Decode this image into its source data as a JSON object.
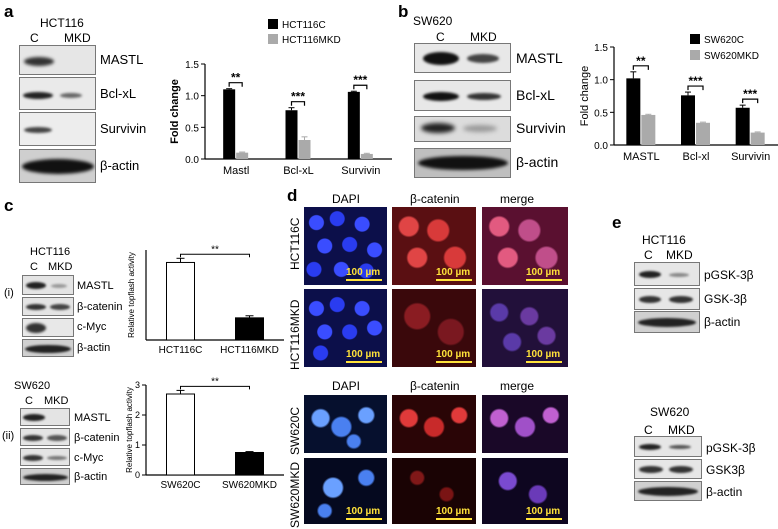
{
  "panels": {
    "a": {
      "letter": "a",
      "cell_line": "HCT116",
      "lanes": [
        "C",
        "MKD"
      ],
      "blot_labels": [
        "MASTL",
        "Bcl-xL",
        "Survivin",
        "β-actin"
      ]
    },
    "b": {
      "letter": "b",
      "cell_line": "SW620",
      "lanes": [
        "C",
        "MKD"
      ],
      "blot_labels": [
        "MASTL",
        "Bcl-xL",
        "Survivin",
        "β-actin"
      ]
    },
    "c": {
      "letter": "c",
      "i": {
        "roman": "(i)",
        "cell_line": "HCT116",
        "lanes": [
          "C",
          "MKD"
        ],
        "blot_labels": [
          "MASTL",
          "β-catenin",
          "c-Myc",
          "β-actin"
        ]
      },
      "ii": {
        "roman": "(ii)",
        "cell_line": "SW620",
        "lanes": [
          "C",
          "MKD"
        ],
        "blot_labels": [
          "MASTL",
          "β-catenin",
          "c-Myc",
          "β-actin"
        ]
      }
    },
    "d": {
      "letter": "d",
      "top_headers": [
        "DAPI",
        "β-catenin",
        "merge"
      ],
      "bottom_headers": [
        "DAPI",
        "β-catenin",
        "merge"
      ],
      "row_labels": [
        "HCT116C",
        "HCT116MKD",
        "SW620C",
        "SW620MKD"
      ],
      "scale_label": "100 µm"
    },
    "e": {
      "letter": "e",
      "top": {
        "cell_line": "HCT116",
        "lanes": [
          "C",
          "MKD"
        ],
        "blot_labels": [
          "pGSK-3β",
          "GSK-3β",
          "β-actin"
        ]
      },
      "bottom": {
        "cell_line": "SW620",
        "lanes": [
          "C",
          "MKD"
        ],
        "blot_labels": [
          "pGSK-3β",
          "GSK3β",
          "β-actin"
        ]
      }
    }
  },
  "chart_data": [
    {
      "id": "a",
      "type": "bar",
      "categories": [
        "Mastl",
        "Bcl-xL",
        "Survivin"
      ],
      "series": [
        {
          "name": "HCT116C",
          "color": "#000000",
          "values": [
            1.1,
            0.77,
            1.06
          ],
          "errors": [
            0.01,
            0.04,
            0.01
          ]
        },
        {
          "name": "HCT116MKD",
          "color": "#aaaaaa",
          "values": [
            0.1,
            0.3,
            0.08
          ],
          "errors": [
            0.01,
            0.05,
            0.01
          ]
        }
      ],
      "ylabel": "Fold change",
      "ylim": [
        0,
        1.5
      ],
      "yticks": [
        "0.0",
        "0.5",
        "1.0",
        "1.5"
      ],
      "significance": [
        "**",
        "***",
        "***"
      ],
      "legend": "top-right"
    },
    {
      "id": "b",
      "type": "bar",
      "categories": [
        "MASTL",
        "Bcl-xl",
        "Survivin"
      ],
      "series": [
        {
          "name": "SW620C",
          "color": "#000000",
          "values": [
            1.02,
            0.76,
            0.57
          ],
          "errors": [
            0.1,
            0.05,
            0.04
          ]
        },
        {
          "name": "SW620MKD",
          "color": "#aaaaaa",
          "values": [
            0.46,
            0.34,
            0.19
          ],
          "errors": [
            0.01,
            0.01,
            0.01
          ]
        }
      ],
      "ylabel": "Fold change",
      "ylim": [
        0,
        1.5
      ],
      "yticks": [
        "0.0",
        "0.5",
        "1.0",
        "1.5"
      ],
      "significance": [
        "**",
        "***",
        "***"
      ],
      "legend": "top-right"
    },
    {
      "id": "c-i",
      "type": "bar",
      "categories": [
        "HCT116C",
        "HCT116MKD"
      ],
      "series": [
        {
          "name": "",
          "colors": [
            "#ffffff",
            "#000000"
          ],
          "values": [
            1.12,
            0.32
          ],
          "errors": [
            0.06,
            0.03
          ]
        }
      ],
      "ylabel": "Relative topflash activity",
      "ylim": [
        0,
        1.3
      ],
      "yticks": [],
      "significance": [
        "**"
      ]
    },
    {
      "id": "c-ii",
      "type": "bar",
      "categories": [
        "SW620C",
        "SW620MKD"
      ],
      "series": [
        {
          "name": "",
          "colors": [
            "#ffffff",
            "#000000"
          ],
          "values": [
            2.7,
            0.75
          ],
          "errors": [
            0.12,
            0.03
          ]
        }
      ],
      "ylabel": "Relative topflash activity",
      "ylim": [
        0,
        3
      ],
      "yticks": [
        "0",
        "1",
        "2",
        "3"
      ],
      "significance": [
        "**"
      ]
    }
  ]
}
